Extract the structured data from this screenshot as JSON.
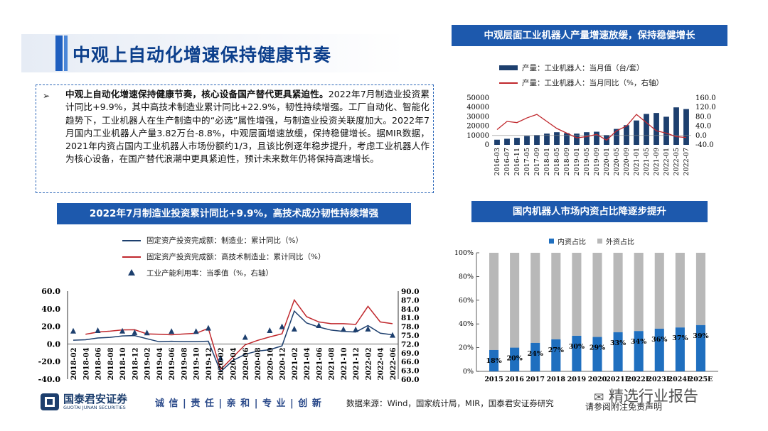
{
  "main_title": "中观上自动化增速保持健康节奏",
  "summary": {
    "bullet": "➢",
    "bold": "中观上自动化增速保持健康节奏，核心设备国产替代更具紧迫性。",
    "text": "2022年7月制造业投资累计同比+9.9%，其中高技术制造业累计同比+22.9%，韧性持续增强。工厂自动化、智能化趋势下，工业机器人在生产制造中的“必选”属性增强，与制造业投资关联度加大。2022年7月国内工业机器人产量3.82万台-8.8%，中观层面增速放缓，保持稳健增长。据MIR数据，2021年内资占国内工业机器人市场份额约1/3，且该比例逐年稳步提升，考虑工业机器人作为核心设备，在国产替代浪潮中更具紧迫性，预计未来数年仍将保持高速增长。"
  },
  "colors": {
    "navy": "#1d3f6e",
    "red": "#c0282d",
    "blue": "#1f6fbf",
    "gray": "#b8b8b8",
    "banner": "#1d59ad"
  },
  "robot_chart": {
    "banner": "中观层面工业机器人产量增速放缓，保持稳健增长",
    "legend": [
      "产量：工业机器人：当月值（台/套）",
      "产量：工业机器人：当月同比（%，右轴）"
    ]
  },
  "invest_chart": {
    "banner": "2022年7月制造业投资累计同比+9.9%，高技术成分韧性持续增强",
    "legend": [
      "固定资产投资完成额：制造业：累计同比（%）",
      "固定资产投资完成额：高技术制造业：累计同比（%）",
      "工业产能利用率：当季值（%，右轴）"
    ]
  },
  "share_chart": {
    "banner": "国内机器人市场内资占比降逐步提升",
    "legend": [
      "内资占比",
      "外资占比"
    ]
  },
  "chart_data": [
    {
      "type": "bar",
      "title": "中观层面工业机器人产量增速放缓，保持稳健增长",
      "categories": [
        "2016-03",
        "2016-07",
        "2016-11",
        "2017-05",
        "2017-09",
        "2018-01",
        "2018-05",
        "2018-09",
        "2019-01",
        "2019-05",
        "2019-09",
        "2020-01",
        "2020-05",
        "2020-09",
        "2021-01",
        "2021-05",
        "2021-09",
        "2022-01",
        "2022-05",
        "2022-07"
      ],
      "series": [
        {
          "name": "产量：工业机器人：当月值（台/套）",
          "axis": "left",
          "values": [
            5500,
            6500,
            7500,
            9500,
            10500,
            12000,
            13500,
            12500,
            12000,
            13500,
            14000,
            10500,
            17000,
            21000,
            26000,
            33000,
            34000,
            30000,
            40000,
            38200
          ]
        },
        {
          "name": "产量：工业机器人：当月同比（%，右轴）",
          "axis": "right",
          "values": [
            25,
            60,
            55,
            75,
            90,
            60,
            30,
            10,
            -10,
            -5,
            5,
            -20,
            20,
            40,
            90,
            55,
            20,
            10,
            -5,
            -8.8
          ]
        }
      ],
      "ylim_left": [
        0,
        50000
      ],
      "yticks_left": [
        "0",
        "10000",
        "20000",
        "30000",
        "40000",
        "50000"
      ],
      "ylim_right": [
        -40,
        160
      ],
      "yticks_right": [
        "-40.0",
        "0.0",
        "40.0",
        "80.0",
        "120.0",
        "160.0"
      ]
    },
    {
      "type": "line",
      "title": "2022年7月制造业投资累计同比+9.9%，高技术成分韧性持续增强",
      "categories": [
        "2018-02",
        "2018-04",
        "2018-06",
        "2018-08",
        "2018-10",
        "2018-12",
        "2019-02",
        "2019-04",
        "2019-06",
        "2019-08",
        "2019-10",
        "2019-12",
        "2020-02",
        "2020-04",
        "2020-06",
        "2020-08",
        "2020-10",
        "2020-12",
        "2021-02",
        "2021-04",
        "2021-06",
        "2021-08",
        "2021-10",
        "2021-12",
        "2022-02",
        "2022-04",
        "2022-06"
      ],
      "series": [
        {
          "name": "固定资产投资完成额：制造业：累计同比（%）",
          "axis": "left",
          "values": [
            4.3,
            4.8,
            6.8,
            7.5,
            9.1,
            9.5,
            5.9,
            2.5,
            3.0,
            2.6,
            2.6,
            3.1,
            -31.5,
            -18.8,
            -11.7,
            -8.1,
            -6.5,
            -2.2,
            37.3,
            23.8,
            19.2,
            15.7,
            14.2,
            13.5,
            20.9,
            12.2,
            10.4
          ]
        },
        {
          "name": "固定资产投资完成额：高技术制造业：累计同比（%）",
          "axis": "left",
          "values": [
            null,
            11.0,
            13.5,
            14.5,
            15.9,
            16.1,
            11.4,
            11.0,
            10.4,
            11.3,
            12.1,
            17.7,
            -29.0,
            -15.0,
            -1.0,
            4.0,
            8.0,
            11.5,
            50.0,
            31.0,
            25.0,
            23.0,
            23.0,
            22.2,
            42.7,
            25.0,
            23.0
          ]
        },
        {
          "name": "工业产能利用率：当季值（%，右轴）",
          "axis": "right",
          "values": [
            76.5,
            null,
            76.7,
            null,
            76.5,
            76.0,
            75.9,
            null,
            76.4,
            null,
            76.4,
            77.5,
            67.3,
            null,
            74.4,
            null,
            76.7,
            78.0,
            77.2,
            null,
            78.4,
            null,
            77.1,
            77.0,
            77.2,
            null,
            75.1
          ]
        }
      ],
      "ylim_left": [
        -40,
        60
      ],
      "yticks_left": [
        "-40.0",
        "-20.0",
        "0.0",
        "20.0",
        "40.0",
        "60.0"
      ],
      "ylim_right": [
        60,
        90
      ],
      "yticks_right": [
        "60.0",
        "63.0",
        "66.0",
        "69.0",
        "72.0",
        "75.0",
        "78.0",
        "81.0",
        "84.0",
        "87.0",
        "90.0"
      ]
    },
    {
      "type": "bar",
      "title": "国内机器人市场内资占比降逐步提升",
      "stacked": true,
      "categories": [
        "2015",
        "2016",
        "2017",
        "2018",
        "2019",
        "2020",
        "2021E",
        "2022E",
        "2023E",
        "2024E",
        "2025E"
      ],
      "series": [
        {
          "name": "内资占比",
          "values": [
            18,
            20,
            24,
            27,
            30,
            29,
            33,
            34,
            36,
            37,
            39
          ]
        },
        {
          "name": "外资占比",
          "values": [
            82,
            80,
            76,
            73,
            70,
            71,
            67,
            66,
            64,
            63,
            61
          ]
        }
      ],
      "data_labels": [
        "18%",
        "20%",
        "24%",
        "27%",
        "30%",
        "29%",
        "33%",
        "34%",
        "36%",
        "37%",
        "39%"
      ],
      "ylim": [
        0,
        100
      ],
      "yticks": [
        "0%",
        "20%",
        "40%",
        "60%",
        "80%",
        "100%"
      ]
    }
  ],
  "footer": {
    "logo_cn": "国泰君安证券",
    "logo_en": "GUOTAI JUNAN SECURITIES",
    "tagline": "诚 信 | 责 任 | 亲 和 | 专 业 | 创 新",
    "source": "数据来源：Wind，国家统计局，MIR，国泰君安证券研究",
    "disclaimer": "请参阅附注免责声明",
    "watermark": "精选行业报告"
  }
}
